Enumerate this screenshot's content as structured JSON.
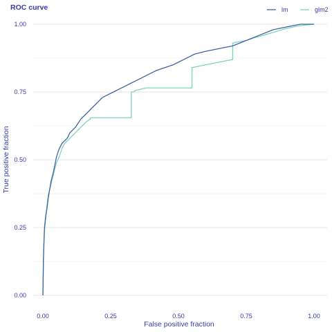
{
  "chart_data": {
    "type": "line",
    "title": "ROC curve",
    "xlabel": "False positive fraction",
    "ylabel": "True positive fraction",
    "xlim": [
      0,
      1
    ],
    "ylim": [
      0,
      1
    ],
    "x_ticks": [
      "0.00",
      "0.25",
      "0.50",
      "0.75",
      "1.00"
    ],
    "y_ticks": [
      "0.00",
      "0.25",
      "0.50",
      "0.75",
      "1.00"
    ],
    "x_tick_values": [
      0,
      0.25,
      0.5,
      0.75,
      1
    ],
    "y_tick_values": [
      0,
      0.25,
      0.5,
      0.75,
      1
    ],
    "grid": true,
    "legend_position": "top-right",
    "series": [
      {
        "name": "lm",
        "color": "#3d63a8",
        "x": [
          0,
          0.002,
          0.004,
          0.006,
          0.01,
          0.015,
          0.02,
          0.03,
          0.04,
          0.05,
          0.06,
          0.07,
          0.08,
          0.09,
          0.1,
          0.12,
          0.14,
          0.16,
          0.18,
          0.2,
          0.22,
          0.24,
          0.26,
          0.28,
          0.3,
          0.32,
          0.34,
          0.36,
          0.38,
          0.4,
          0.42,
          0.45,
          0.48,
          0.5,
          0.52,
          0.54,
          0.56,
          0.6,
          0.65,
          0.7,
          0.75,
          0.8,
          0.85,
          0.9,
          0.95,
          1
        ],
        "y": [
          0,
          0.13,
          0.2,
          0.25,
          0.29,
          0.32,
          0.36,
          0.42,
          0.46,
          0.51,
          0.54,
          0.56,
          0.57,
          0.58,
          0.6,
          0.62,
          0.65,
          0.67,
          0.69,
          0.71,
          0.73,
          0.74,
          0.75,
          0.76,
          0.77,
          0.78,
          0.79,
          0.8,
          0.81,
          0.82,
          0.83,
          0.84,
          0.85,
          0.86,
          0.87,
          0.88,
          0.89,
          0.9,
          0.91,
          0.92,
          0.94,
          0.96,
          0.98,
          0.99,
          1.0,
          1.0
        ]
      },
      {
        "name": "glm2",
        "color": "#7fd1be",
        "x": [
          0,
          0.002,
          0.004,
          0.006,
          0.01,
          0.015,
          0.02,
          0.03,
          0.04,
          0.05,
          0.06,
          0.07,
          0.08,
          0.1,
          0.12,
          0.14,
          0.16,
          0.175,
          0.175,
          0.326,
          0.326,
          0.333,
          0.34,
          0.36,
          0.38,
          0.4,
          0.55,
          0.55,
          0.6,
          0.65,
          0.7,
          0.7,
          0.72,
          0.75,
          0.78,
          0.8,
          0.85,
          0.9,
          0.95,
          1
        ],
        "y": [
          0,
          0.12,
          0.19,
          0.24,
          0.28,
          0.33,
          0.37,
          0.41,
          0.45,
          0.49,
          0.51,
          0.54,
          0.56,
          0.58,
          0.6,
          0.62,
          0.64,
          0.65,
          0.655,
          0.655,
          0.75,
          0.75,
          0.755,
          0.76,
          0.765,
          0.765,
          0.765,
          0.84,
          0.85,
          0.86,
          0.87,
          0.93,
          0.935,
          0.94,
          0.95,
          0.955,
          0.97,
          0.985,
          0.995,
          1.0
        ]
      }
    ]
  }
}
